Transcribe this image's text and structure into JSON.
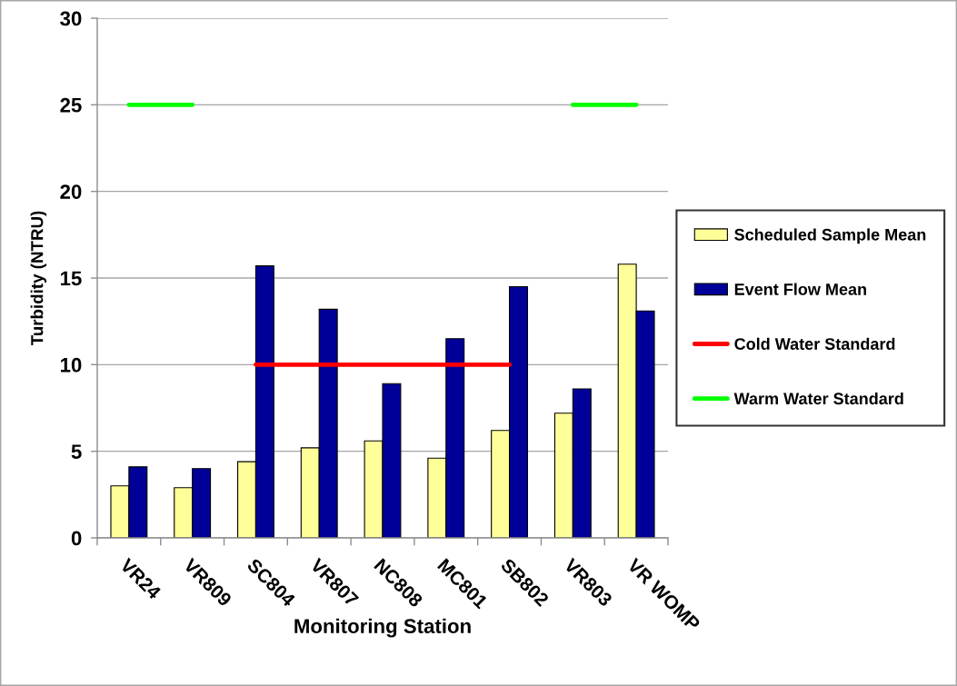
{
  "chart_data": {
    "type": "bar",
    "xlabel": "Monitoring Station",
    "ylabel": "Turbidity (NTRU)",
    "categories": [
      "VR24",
      "VR809",
      "SC804",
      "VR807",
      "NC808",
      "MC801",
      "SB802",
      "VR803",
      "VR WOMP"
    ],
    "series": [
      {
        "name": "Scheduled Sample Mean",
        "color": "#ffff99",
        "values": [
          3.0,
          2.9,
          4.4,
          5.2,
          5.6,
          4.6,
          6.2,
          7.2,
          15.8
        ]
      },
      {
        "name": "Event Flow Mean",
        "color": "#000099",
        "values": [
          4.1,
          4.0,
          15.7,
          13.2,
          8.9,
          11.5,
          14.5,
          8.6,
          13.1
        ]
      },
      {
        "name": "Cold Water Standard",
        "type": "line",
        "color": "#ff0000",
        "values": [
          null,
          null,
          10,
          10,
          10,
          10,
          10,
          null,
          null
        ]
      },
      {
        "name": "Warm Water Standard",
        "type": "line",
        "color": "#00ff00",
        "values": [
          25,
          25,
          null,
          null,
          null,
          null,
          null,
          25,
          25
        ]
      }
    ],
    "ylim": [
      0,
      30
    ],
    "yticks": [
      0,
      5,
      10,
      15,
      20,
      25,
      30
    ],
    "grid": "y",
    "legend": "right",
    "marker": "none",
    "line_style": "solid"
  }
}
